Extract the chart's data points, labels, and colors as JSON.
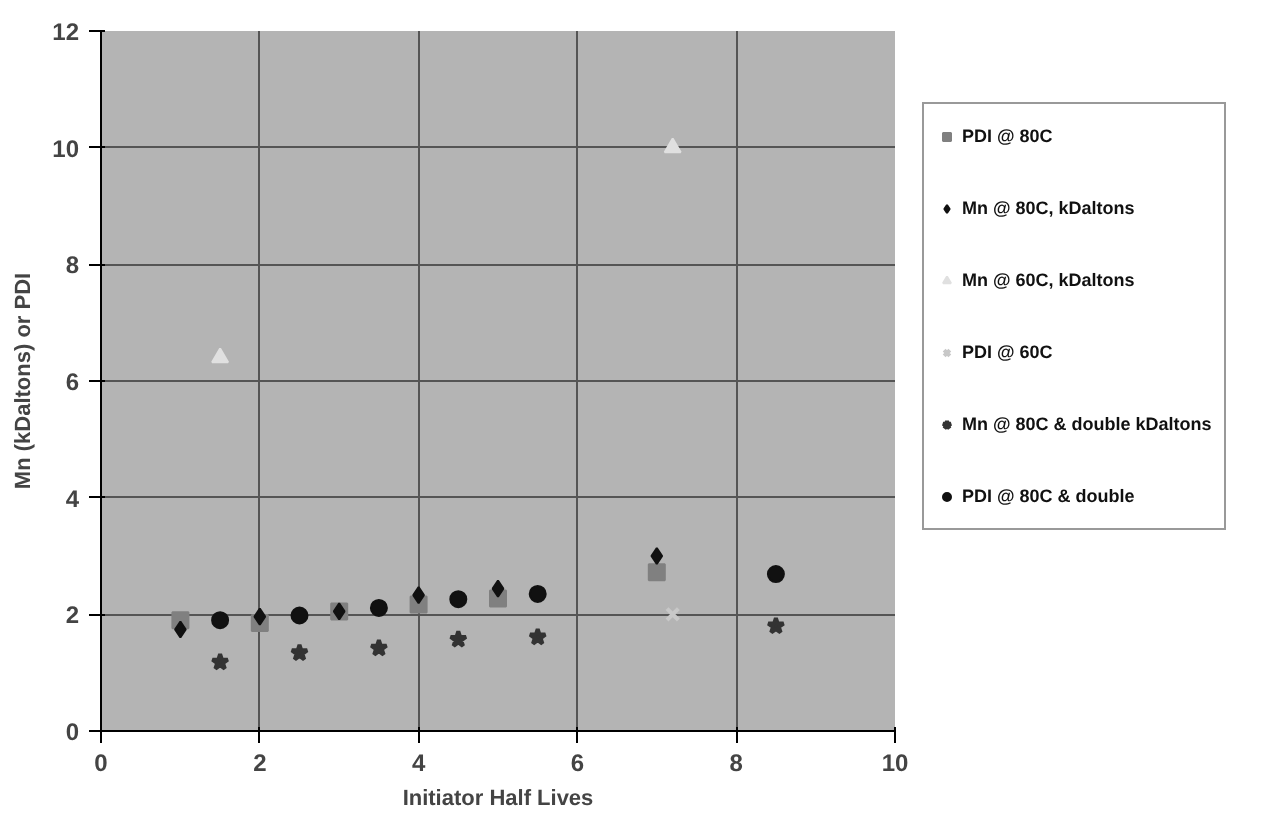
{
  "chart_data": {
    "type": "scatter",
    "xlabel": "Initiator Half Lives",
    "ylabel": "Mn (kDaltons) or PDI",
    "xlim": [
      0,
      10
    ],
    "xticks": [
      0,
      2,
      4,
      6,
      8,
      10
    ],
    "ylim": [
      0,
      12
    ],
    "yticks": [
      0,
      2,
      4,
      6,
      8,
      10,
      12
    ],
    "grid": true,
    "legend": "right",
    "series": [
      {
        "name": "PDI @ 80C",
        "color": "#808080",
        "marker": "square",
        "x": [
          1,
          2,
          3,
          4,
          5,
          7
        ],
        "values": [
          1.9,
          1.85,
          2.05,
          2.17,
          2.27,
          2.72
        ]
      },
      {
        "name": "Mn @ 80C, kDaltons",
        "color": "#111111",
        "marker": "diamond",
        "x": [
          1,
          2,
          3,
          4,
          5,
          7
        ],
        "values": [
          1.74,
          1.96,
          2.05,
          2.33,
          2.44,
          3.0
        ]
      },
      {
        "name": "Mn @ 60C, kDaltons",
        "color": "#e0e0e0",
        "marker": "triangle",
        "x": [
          1.5,
          7.2
        ],
        "values": [
          6.4,
          10.0
        ]
      },
      {
        "name": "PDI @ 60C",
        "color": "#c8c8c8",
        "marker": "cross",
        "x": [
          7.2
        ],
        "values": [
          2.0
        ]
      },
      {
        "name": "Mn @ 80C & double kDaltons",
        "color": "#333333",
        "marker": "star",
        "x": [
          1.5,
          2.5,
          3.5,
          4.5,
          5.5,
          8.5
        ],
        "values": [
          1.18,
          1.34,
          1.42,
          1.57,
          1.61,
          1.8
        ]
      },
      {
        "name": "PDI @ 80C & double",
        "color": "#111111",
        "marker": "circle",
        "x": [
          1.5,
          2.5,
          3.5,
          4.5,
          5.5,
          8.5
        ],
        "values": [
          1.9,
          1.98,
          2.11,
          2.26,
          2.35,
          2.69
        ]
      }
    ]
  }
}
